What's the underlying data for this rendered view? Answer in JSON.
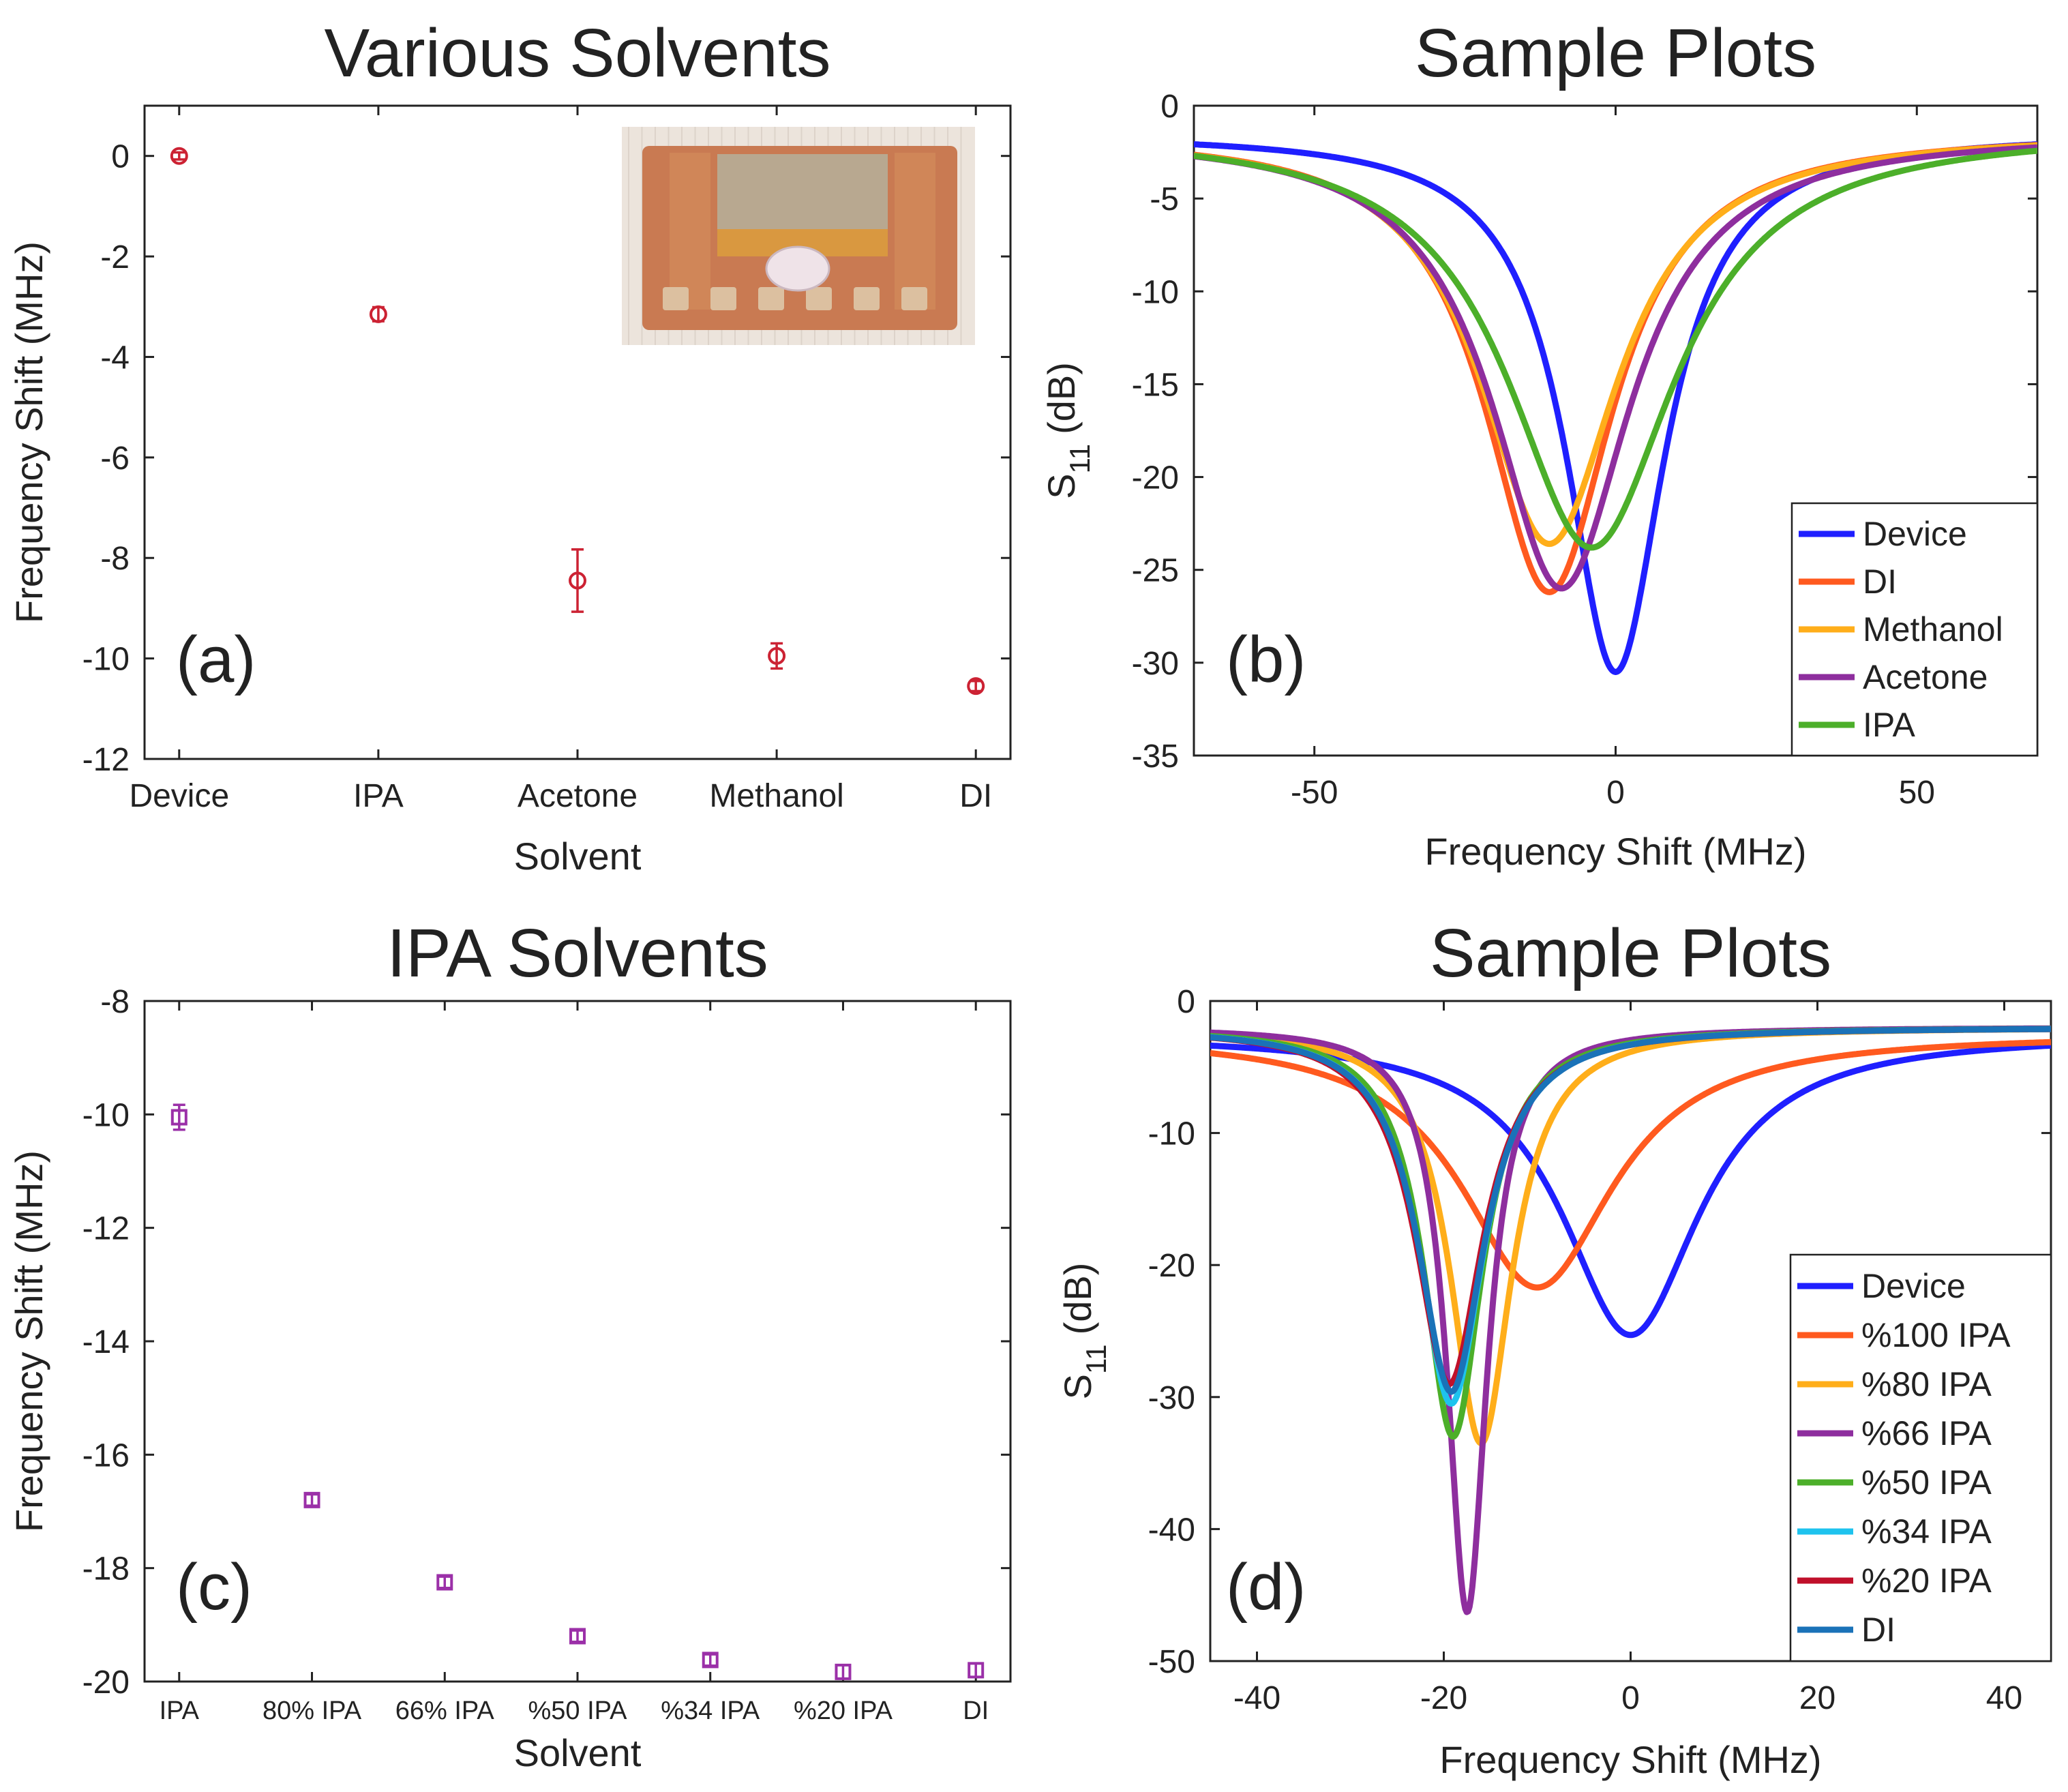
{
  "chart_data": [
    {
      "id": "a",
      "type": "scatter",
      "title": "Various Solvents",
      "panel_label": "(a)",
      "xlabel": "Solvent",
      "ylabel": "Frequency Shift (MHz)",
      "categories": [
        "Device",
        "IPA",
        "Acetone",
        "Methanol",
        "DI"
      ],
      "values": [
        0,
        -3.15,
        -8.45,
        -9.95,
        -10.55
      ],
      "errors": [
        0.07,
        0.14,
        0.62,
        0.25,
        0.1
      ],
      "ylim": [
        -12,
        1
      ],
      "yticks": [
        0,
        -2,
        -4,
        -6,
        -8,
        -10,
        -12
      ],
      "marker": "circle",
      "color": "#cc2233",
      "inset": "photo-of-device"
    },
    {
      "id": "b",
      "type": "line",
      "title": "Sample Plots",
      "panel_label": "(b)",
      "xlabel": "Frequency Shift (MHz)",
      "ylabel": "S11 (dB)",
      "ylabel_base": "S",
      "ylabel_sub": "11",
      "ylabel_unit": "(dB)",
      "xlim": [
        -70,
        70
      ],
      "ylim": [
        -35,
        0
      ],
      "xticks": [
        -50,
        0,
        50
      ],
      "yticks": [
        0,
        -5,
        -10,
        -15,
        -20,
        -25,
        -30,
        -35
      ],
      "legend_position": "bottom-right",
      "series": [
        {
          "name": "Device",
          "color": "#1f1fff",
          "center": 0,
          "depth": -30.5,
          "base": -1.5,
          "hw": 10
        },
        {
          "name": "DI",
          "color": "#ff5a1f",
          "center": -11,
          "depth": -26.2,
          "base": -1.5,
          "hw": 13
        },
        {
          "name": "Methanol",
          "color": "#ffae1a",
          "center": -11,
          "depth": -23.6,
          "base": -1.5,
          "hw": 14
        },
        {
          "name": "Acetone",
          "color": "#8e2e9e",
          "center": -9,
          "depth": -26,
          "base": -1.5,
          "hw": 14
        },
        {
          "name": "IPA",
          "color": "#4caf2a",
          "center": -4,
          "depth": -23.8,
          "base": -1.3,
          "hw": 17
        }
      ]
    },
    {
      "id": "c",
      "type": "scatter",
      "title": "IPA Solvents",
      "panel_label": "(c)",
      "xlabel": "Solvent",
      "ylabel": "Frequency Shift (MHz)",
      "categories": [
        "IPA",
        "80% IPA",
        "66% IPA",
        "%50 IPA",
        "%34 IPA",
        "%20 IPA",
        "DI"
      ],
      "values": [
        -10.05,
        -16.8,
        -18.25,
        -19.2,
        -19.62,
        -19.83,
        -19.8
      ],
      "errors": [
        0.22,
        0.1,
        0.1,
        0.1,
        0.1,
        0.12,
        0.12
      ],
      "ylim": [
        -20,
        -8
      ],
      "yticks": [
        -8,
        -10,
        -12,
        -14,
        -16,
        -18,
        -20
      ],
      "marker": "square",
      "color": "#9b30a8"
    },
    {
      "id": "d",
      "type": "line",
      "title": "Sample Plots",
      "panel_label": "(d)",
      "xlabel": "Frequency Shift (MHz)",
      "ylabel": "S11 (dB)",
      "ylabel_base": "S",
      "ylabel_sub": "11",
      "ylabel_unit": "(dB)",
      "xlim": [
        -45,
        45
      ],
      "ylim": [
        -50,
        0
      ],
      "xticks": [
        -40,
        -20,
        0,
        20,
        40
      ],
      "yticks": [
        0,
        -10,
        -20,
        -30,
        -40,
        -50
      ],
      "legend_position": "bottom-right",
      "series": [
        {
          "name": "Device",
          "color": "#1f1fff",
          "center": 0,
          "depth": -25.3,
          "base": -2.5,
          "hw": 9
        },
        {
          "name": "%100 IPA",
          "color": "#ff5a1f",
          "center": -10,
          "depth": -21.7,
          "base": -2.5,
          "hw": 10
        },
        {
          "name": "%80 IPA",
          "color": "#ffae1a",
          "center": -16,
          "depth": -33.5,
          "base": -2.0,
          "hw": 4
        },
        {
          "name": "%66 IPA",
          "color": "#8e2e9e",
          "center": -17.5,
          "depth": -46.3,
          "base": -2.0,
          "hw": 2.6
        },
        {
          "name": "%50 IPA",
          "color": "#4caf2a",
          "center": -19,
          "depth": -33.0,
          "base": -2.0,
          "hw": 3.8
        },
        {
          "name": "%34 IPA",
          "color": "#1ec3ee",
          "center": -19.2,
          "depth": -30.5,
          "base": -2.0,
          "hw": 4.2
        },
        {
          "name": "%20 IPA",
          "color": "#c0102a",
          "center": -19.4,
          "depth": -29.0,
          "base": -2.0,
          "hw": 4.4
        },
        {
          "name": "DI",
          "color": "#1a72b8",
          "center": -19.2,
          "depth": -29.6,
          "base": -2.0,
          "hw": 4.3
        }
      ]
    }
  ]
}
